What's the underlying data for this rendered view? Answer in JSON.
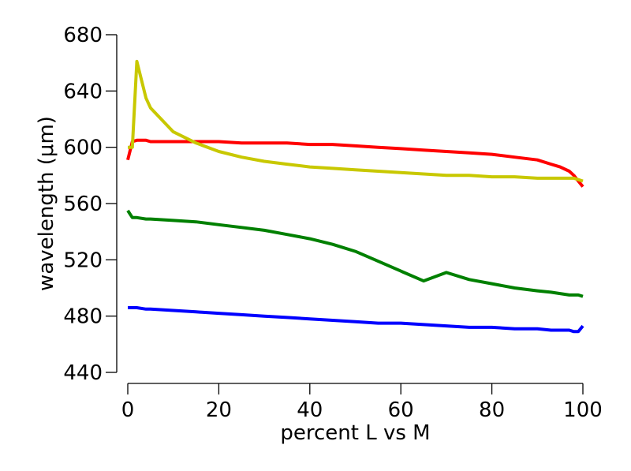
{
  "chart_data": {
    "type": "line",
    "title": "",
    "xlabel": "percent L vs M",
    "ylabel": "wavelength (μm)",
    "xlim": [
      0,
      100
    ],
    "ylim": [
      440,
      680
    ],
    "xticks": [
      0,
      20,
      40,
      60,
      80,
      100
    ],
    "yticks": [
      440,
      480,
      520,
      560,
      600,
      640,
      680
    ],
    "xtick_labels": [
      "0",
      "20",
      "40",
      "60",
      "80",
      "100"
    ],
    "ytick_labels": [
      "440",
      "480",
      "520",
      "560",
      "600",
      "640",
      "680"
    ],
    "grid": false,
    "legend": "none",
    "x": [
      0,
      1,
      2,
      4,
      5,
      10,
      15,
      20,
      25,
      30,
      35,
      40,
      45,
      50,
      55,
      60,
      65,
      70,
      75,
      80,
      85,
      90,
      93,
      95,
      97,
      98,
      99,
      100
    ],
    "series": [
      {
        "color": "#ff0000",
        "values": [
          591,
          604,
          605,
          605,
          604,
          604,
          604,
          604,
          603,
          603,
          603,
          602,
          602,
          601,
          600,
          599,
          598,
          597,
          596,
          595,
          593,
          591,
          588,
          586,
          583,
          580,
          576,
          572
        ]
      },
      {
        "color": "#c8c800",
        "values": [
          600,
          600,
          661,
          635,
          628,
          611,
          603,
          597,
          593,
          590,
          588,
          586,
          585,
          584,
          583,
          582,
          581,
          580,
          580,
          579,
          579,
          578,
          578,
          578,
          578,
          578,
          577,
          576
        ]
      },
      {
        "color": "#008000",
        "values": [
          555,
          550,
          550,
          549,
          549,
          548,
          547,
          545,
          543,
          541,
          538,
          535,
          531,
          526,
          519,
          512,
          505,
          511,
          506,
          503,
          500,
          498,
          497,
          496,
          495,
          495,
          495,
          494
        ]
      },
      {
        "color": "#0000ff",
        "values": [
          486,
          486,
          486,
          485,
          485,
          484,
          483,
          482,
          481,
          480,
          479,
          478,
          477,
          476,
          475,
          475,
          474,
          473,
          472,
          472,
          471,
          471,
          470,
          470,
          470,
          469,
          469,
          473
        ]
      }
    ]
  }
}
